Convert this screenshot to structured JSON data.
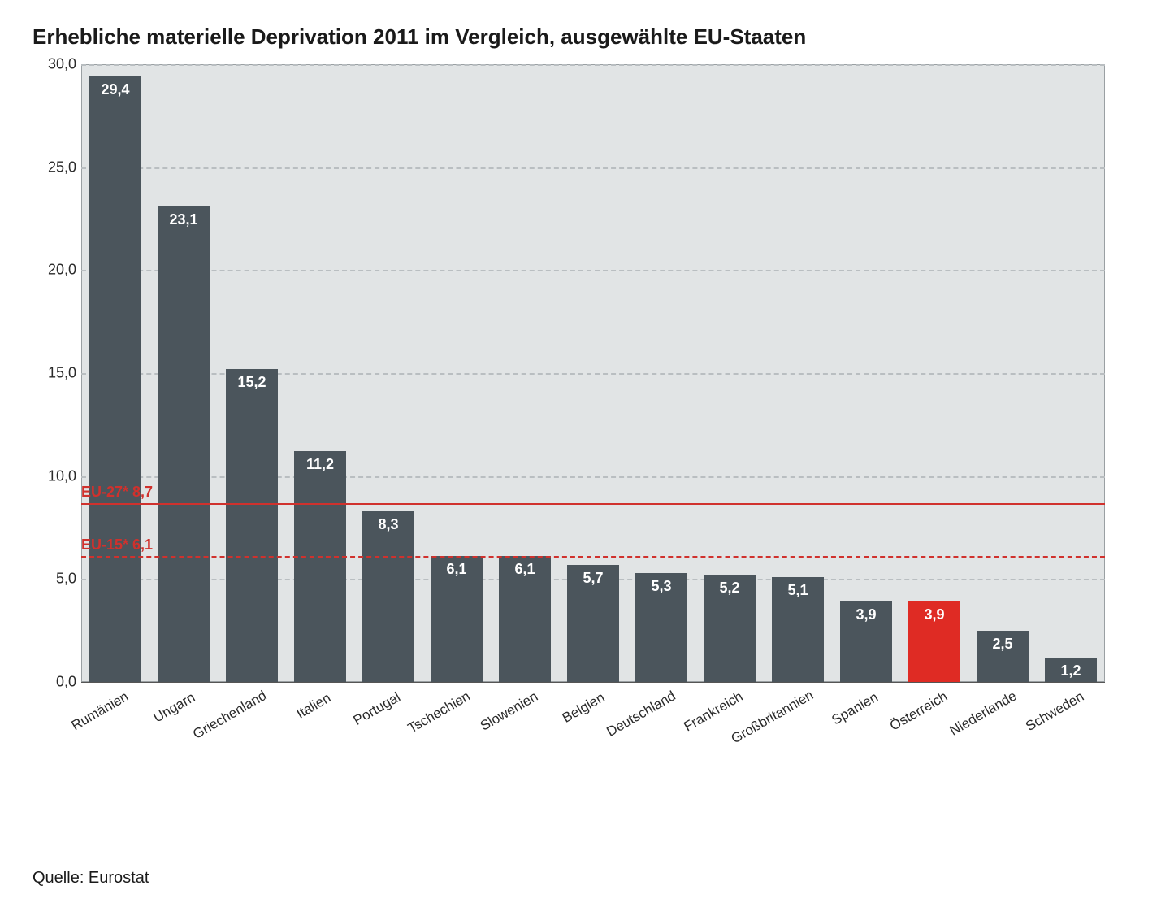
{
  "title": "Erhebliche materielle Deprivation 2011 im Vergleich, ausgewählte EU-Staaten",
  "source": "Quelle: Eurostat",
  "chart": {
    "type": "bar",
    "plot_background": "#e1e4e5",
    "plot_border": "#9aa0a3",
    "grid_color": "#b9bec1",
    "axis_text_color": "#2a2a2a",
    "bar_default_color": "#4b555c",
    "bar_highlight_color": "#df2b24",
    "value_label_color": "#ffffff",
    "value_label_fontsize": 18,
    "axis_label_fontsize": 18,
    "x_label_fontsize": 17,
    "x_label_rotation_deg": -30,
    "title_fontsize": 26,
    "bar_width_ratio": 0.76,
    "ylim": [
      0,
      30
    ],
    "ytick_step": 5,
    "y_ticks": [
      "0,0",
      "5,0",
      "10,0",
      "15,0",
      "20,0",
      "25,0",
      "30,0"
    ],
    "categories": [
      "Rumänien",
      "Ungarn",
      "Griechenland",
      "Italien",
      "Portugal",
      "Tschechien",
      "Slowenien",
      "Belgien",
      "Deutschland",
      "Frankreich",
      "Großbritannien",
      "Spanien",
      "Österreich",
      "Niederlande",
      "Schweden"
    ],
    "values": [
      29.4,
      23.1,
      15.2,
      11.2,
      8.3,
      6.1,
      6.1,
      5.7,
      5.3,
      5.2,
      5.1,
      3.9,
      3.9,
      2.5,
      1.2
    ],
    "value_labels": [
      "29,4",
      "23,1",
      "15,2",
      "11,2",
      "8,3",
      "6,1",
      "6,1",
      "5,7",
      "5,3",
      "5,2",
      "5,1",
      "3,9",
      "3,9",
      "2,5",
      "1,2"
    ],
    "highlighted_index": 12,
    "reference_lines": [
      {
        "label": "EU-27* 8,7",
        "value": 8.7,
        "style": "solid",
        "color": "#d0312d"
      },
      {
        "label": "EU-15* 6,1",
        "value": 6.1,
        "style": "dashed",
        "color": "#d0312d"
      }
    ]
  }
}
